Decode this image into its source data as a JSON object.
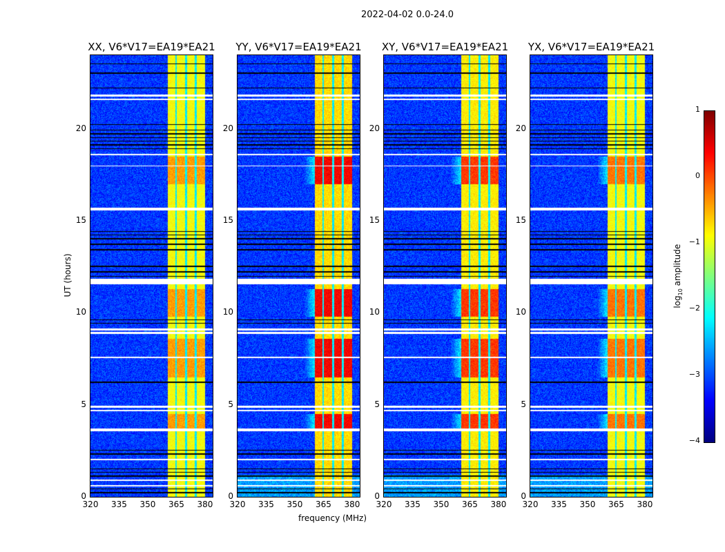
{
  "chart_data": {
    "type": "heatmap",
    "title": "2022-04-02 0.0-24.0",
    "xlabel": "frequency (MHz)",
    "ylabel": "UT (hours)",
    "xlim": [
      320,
      384
    ],
    "ylim": [
      0,
      24
    ],
    "xticks": [
      "320",
      "335",
      "350",
      "365",
      "380"
    ],
    "xtick_values": [
      320,
      335,
      350,
      365,
      380
    ],
    "yticks": [
      "0",
      "5",
      "10",
      "15",
      "20"
    ],
    "ytick_values": [
      0,
      5,
      10,
      15,
      20
    ],
    "colormap": "jet",
    "colorbar": {
      "label_main": "log",
      "label_sub": "10",
      "label_rest": " amplitude",
      "range": [
        -4,
        1
      ],
      "ticks": [
        "1",
        "0",
        "−1",
        "−2",
        "−3",
        "−4"
      ],
      "tick_values": [
        1,
        0,
        -1,
        -2,
        -3,
        -4
      ]
    },
    "background_level": -3.1,
    "bright_band_mhz": [
      360.5,
      380
    ],
    "band_gaps_mhz": [
      364.8,
      370.2,
      375.2
    ],
    "flagged_white_hours": [
      [
        21.55,
        21.65
      ],
      [
        21.75,
        21.85
      ],
      [
        18.55,
        18.65
      ],
      [
        17.95,
        18.0
      ],
      [
        15.55,
        15.7
      ],
      [
        11.55,
        11.85
      ],
      [
        9.05,
        9.15
      ],
      [
        8.85,
        8.95
      ],
      [
        7.55,
        7.62
      ],
      [
        4.85,
        4.95
      ],
      [
        4.65,
        4.72
      ],
      [
        3.55,
        3.7
      ],
      [
        2.0,
        2.08
      ],
      [
        0.85,
        0.92
      ],
      [
        0.55,
        0.62
      ]
    ],
    "flagged_black_hours": [
      [
        23.5,
        23.55
      ],
      [
        23.0,
        23.05
      ],
      [
        22.2,
        22.25
      ],
      [
        20.2,
        20.25
      ],
      [
        19.9,
        19.95
      ],
      [
        19.7,
        19.75
      ],
      [
        19.5,
        19.55
      ],
      [
        19.3,
        19.35
      ],
      [
        19.1,
        19.15
      ],
      [
        18.9,
        18.95
      ],
      [
        14.4,
        14.45
      ],
      [
        14.2,
        14.25
      ],
      [
        14.0,
        14.05
      ],
      [
        13.7,
        13.75
      ],
      [
        13.4,
        13.45
      ],
      [
        12.5,
        12.55
      ],
      [
        12.2,
        12.25
      ],
      [
        11.95,
        12.0
      ],
      [
        9.6,
        9.65
      ],
      [
        9.4,
        9.45
      ],
      [
        6.2,
        6.25
      ],
      [
        2.5,
        2.55
      ],
      [
        2.3,
        2.35
      ],
      [
        1.5,
        1.55
      ],
      [
        1.3,
        1.35
      ],
      [
        1.1,
        1.15
      ],
      [
        0.4,
        0.45
      ],
      [
        0.2,
        0.25
      ]
    ],
    "panels": [
      {
        "title": "XX, V6*V17=EA19*EA21",
        "band_level": -0.9,
        "hot_level": -0.4
      },
      {
        "title": "YY, V6*V17=EA19*EA21",
        "band_level": -0.7,
        "hot_level": 0.4
      },
      {
        "title": "XY, V6*V17=EA19*EA21",
        "band_level": -0.8,
        "hot_level": 0.1
      },
      {
        "title": "YX, V6*V17=EA19*EA21",
        "band_level": -0.9,
        "hot_level": -0.2
      }
    ],
    "hot_hours": [
      [
        17.0,
        18.5
      ],
      [
        9.8,
        11.3
      ],
      [
        6.5,
        8.6
      ],
      [
        3.7,
        4.5
      ]
    ]
  }
}
